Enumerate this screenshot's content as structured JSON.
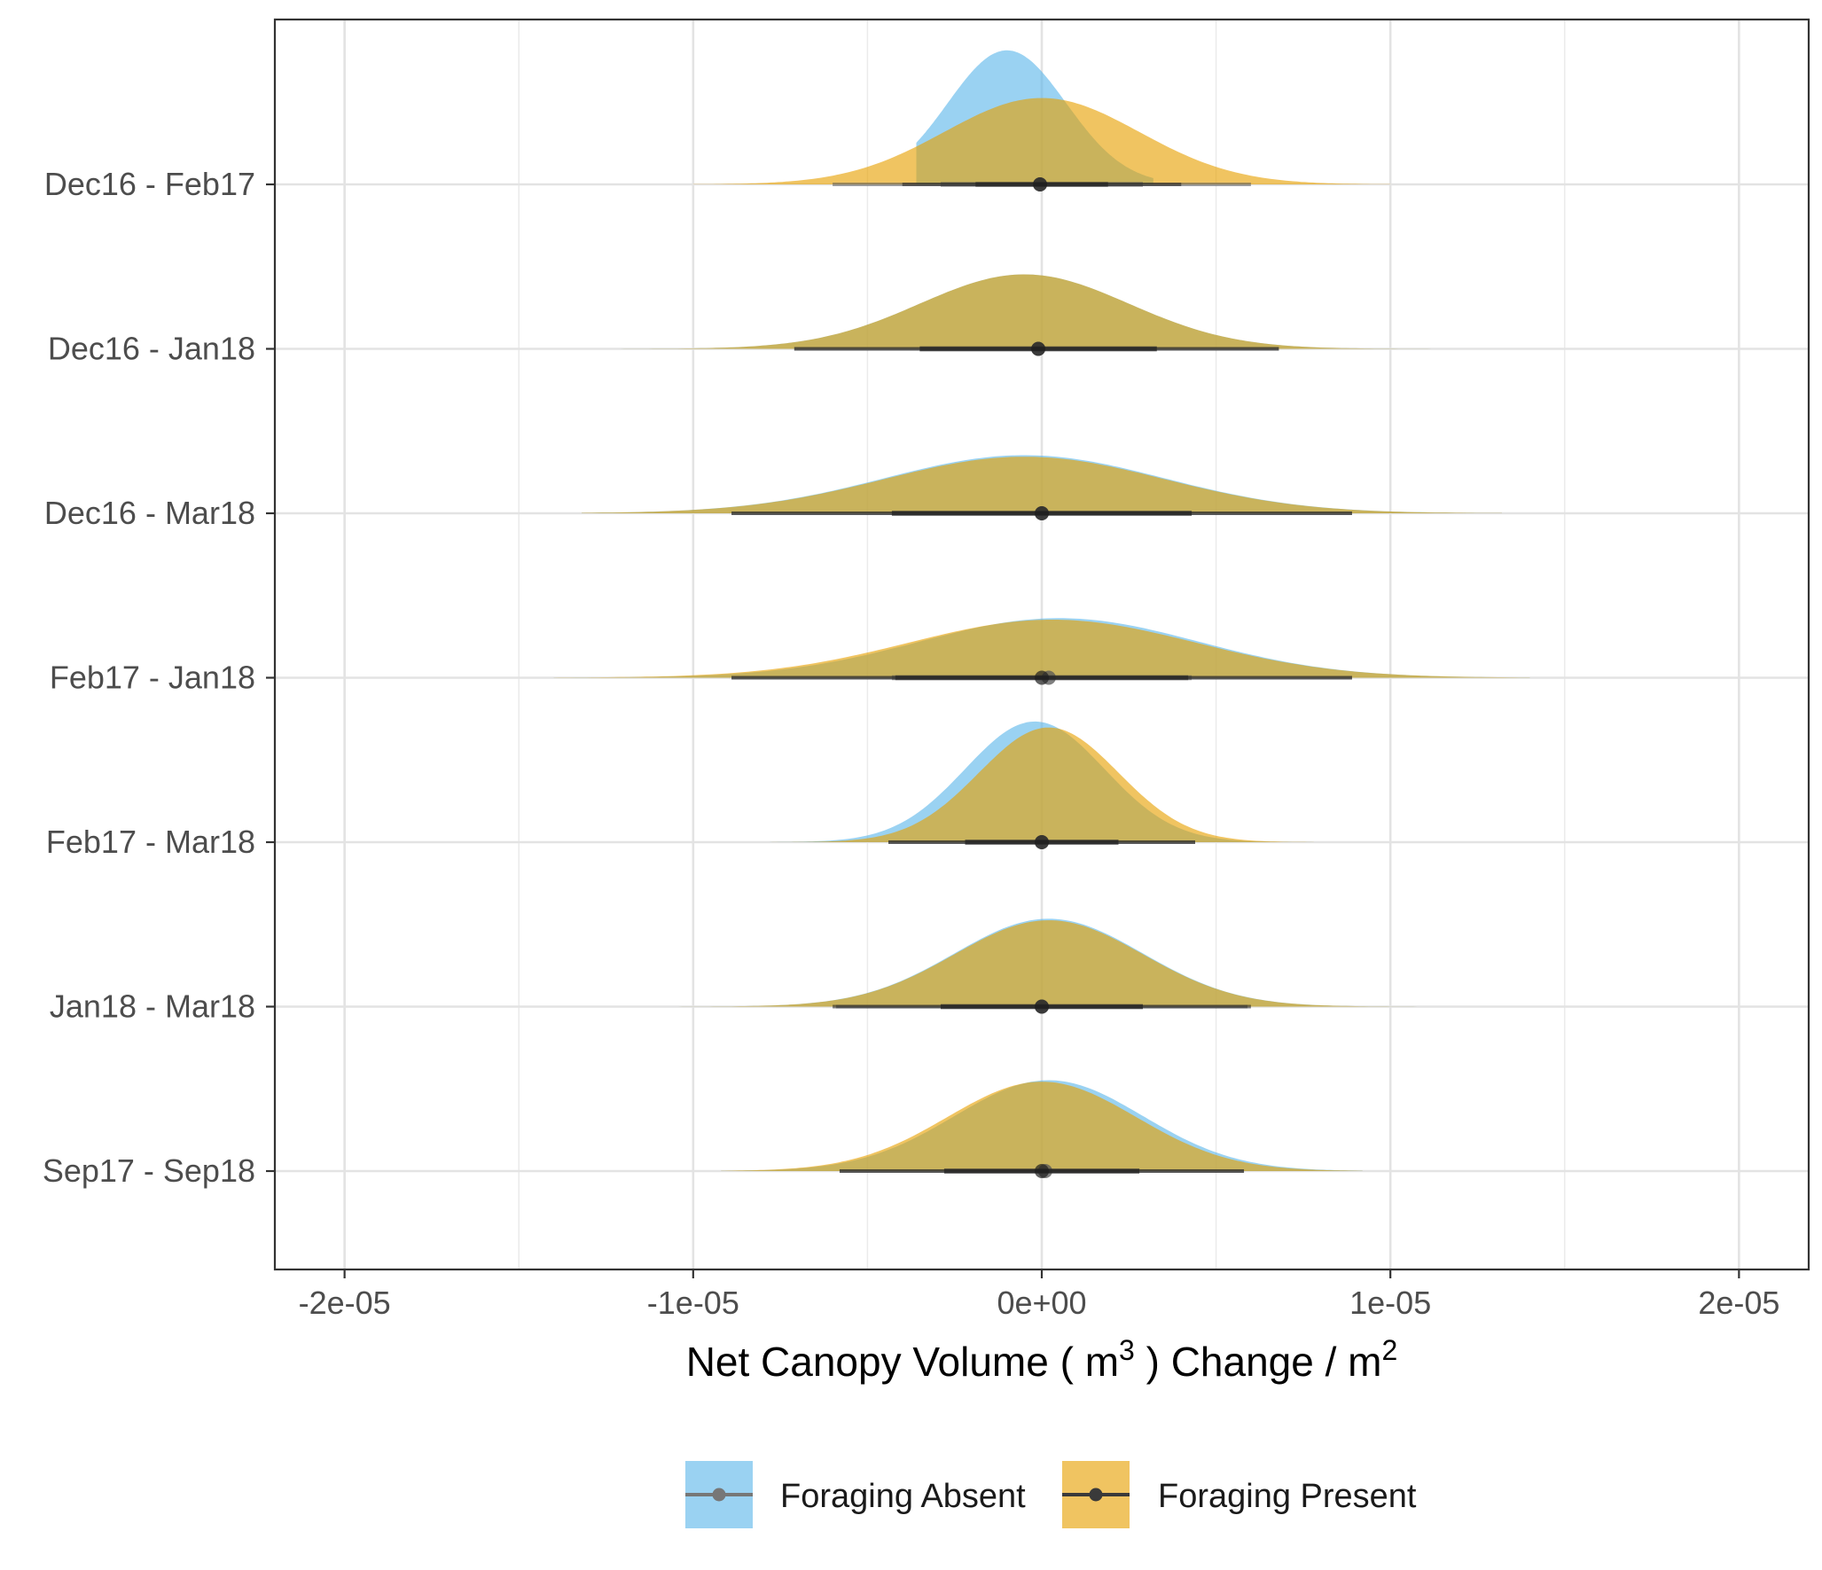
{
  "chart_data": {
    "type": "ridgeline",
    "xlabel": {
      "prefix": "Net Canopy Volume ( m",
      "sup1": "3",
      "middle": " ) Change /  m",
      "sup2": "2"
    },
    "xlim": [
      -2.2e-05,
      2.2e-05
    ],
    "x_ticks": [
      {
        "value": -2e-05,
        "label": "-2e-05"
      },
      {
        "value": -1e-05,
        "label": "-1e-05"
      },
      {
        "value": 0,
        "label": "0e+00"
      },
      {
        "value": 1e-05,
        "label": "1e-05"
      },
      {
        "value": 2e-05,
        "label": "2e-05"
      }
    ],
    "x_minor_ticks": [
      -1.5e-05,
      -5e-06,
      5e-06,
      1.5e-05
    ],
    "categories": [
      "Dec16 - Feb17",
      "Dec16 - Jan18",
      "Dec16 - Mar18",
      "Feb17 - Jan18",
      "Feb17 - Mar18",
      "Jan18 - Mar18",
      "Sep17 - Sep18"
    ],
    "grid": true,
    "legend_position": "bottom",
    "series": [
      {
        "name": "Foraging Absent",
        "color": "#56B4E9",
        "distributions": [
          {
            "category": "Dec16 - Feb17",
            "center": -1e-06,
            "sd": 1.7e-06,
            "height": 0.9,
            "range": [
              -3.6e-06,
              3.2e-06
            ],
            "point": -5e-08,
            "interval_66": [
              -2.9e-06,
              2.9e-06
            ],
            "interval_95": [
              -6e-06,
              6e-06
            ]
          },
          {
            "category": "Dec16 - Jan18",
            "center": -5e-07,
            "sd": 3e-06,
            "height": 0.5,
            "range": [
              -1.25e-05,
              1.2e-05
            ],
            "point": -1e-07,
            "interval_66": [
              -3.5e-06,
              3.3e-06
            ],
            "interval_95": [
              -7.1e-06,
              6.8e-06
            ]
          },
          {
            "category": "Dec16 - Mar18",
            "center": -5e-07,
            "sd": 4e-06,
            "height": 0.39,
            "range": [
              -1.32e-05,
              1.32e-05
            ],
            "point": 0,
            "interval_66": [
              -4.3e-06,
              4.3e-06
            ],
            "interval_95": [
              -8.9e-06,
              8.9e-06
            ]
          },
          {
            "category": "Feb17 - Jan18",
            "center": 5e-07,
            "sd": 4e-06,
            "height": 0.4,
            "range": [
              -1.4e-05,
              1.4e-05
            ],
            "point": 2e-07,
            "interval_66": [
              -4.3e-06,
              4.3e-06
            ],
            "interval_95": [
              -8.9e-06,
              8.9e-06
            ]
          },
          {
            "category": "Feb17 - Mar18",
            "center": -2e-07,
            "sd": 2e-06,
            "height": 0.81,
            "range": [
              -7.8e-06,
              7.8e-06
            ],
            "point": 0,
            "interval_66": [
              -2.2e-06,
              2.2e-06
            ],
            "interval_95": [
              -4.4e-06,
              4.4e-06
            ]
          },
          {
            "category": "Jan18 - Mar18",
            "center": 2e-07,
            "sd": 2.7e-06,
            "height": 0.59,
            "range": [
              -1.12e-05,
              1.18e-05
            ],
            "point": 0,
            "interval_66": [
              -2.9e-06,
              2.9e-06
            ],
            "interval_95": [
              -5.9e-06,
              5.9e-06
            ]
          },
          {
            "category": "Sep17 - Sep18",
            "center": 2e-07,
            "sd": 2.7e-06,
            "height": 0.61,
            "range": [
              -9.2e-06,
              9.2e-06
            ],
            "point": 1e-07,
            "interval_66": [
              -2.8e-06,
              2.8e-06
            ],
            "interval_95": [
              -5.8e-06,
              5.8e-06
            ]
          }
        ]
      },
      {
        "name": "Foraging Present",
        "color": "#E69F00",
        "distributions": [
          {
            "category": "Dec16 - Feb17",
            "center": 0,
            "sd": 2.8e-06,
            "height": 0.58,
            "range": [
              -1e-05,
              1e-05
            ],
            "point": -5e-08,
            "interval_66": [
              -1.9e-06,
              1.9e-06
            ],
            "interval_95": [
              -4e-06,
              4e-06
            ]
          },
          {
            "category": "Dec16 - Jan18",
            "center": -5e-07,
            "sd": 3e-06,
            "height": 0.5,
            "range": [
              -1.25e-05,
              1.2e-05
            ],
            "point": -1e-07,
            "interval_66": [
              -3.5e-06,
              3.3e-06
            ],
            "interval_95": [
              -7.1e-06,
              6.8e-06
            ]
          },
          {
            "category": "Dec16 - Mar18",
            "center": -5e-07,
            "sd": 4e-06,
            "height": 0.38,
            "range": [
              -1.32e-05,
              1.32e-05
            ],
            "point": 0,
            "interval_66": [
              -4.3e-06,
              4.3e-06
            ],
            "interval_95": [
              -8.9e-06,
              8.9e-06
            ]
          },
          {
            "category": "Feb17 - Jan18",
            "center": 3e-07,
            "sd": 4.1e-06,
            "height": 0.39,
            "range": [
              -1.4e-05,
              1.4e-05
            ],
            "point": 0,
            "interval_66": [
              -4.2e-06,
              4.2e-06
            ],
            "interval_95": [
              -8.9e-06,
              8.9e-06
            ]
          },
          {
            "category": "Feb17 - Mar18",
            "center": 2e-07,
            "sd": 2e-06,
            "height": 0.77,
            "range": [
              -7.8e-06,
              7.8e-06
            ],
            "point": 0,
            "interval_66": [
              -2.2e-06,
              2.2e-06
            ],
            "interval_95": [
              -4.4e-06,
              4.4e-06
            ]
          },
          {
            "category": "Jan18 - Mar18",
            "center": 2e-07,
            "sd": 2.7e-06,
            "height": 0.58,
            "range": [
              -1.12e-05,
              1.18e-05
            ],
            "point": 0,
            "interval_66": [
              -2.9e-06,
              2.9e-06
            ],
            "interval_95": [
              -6e-06,
              6e-06
            ]
          },
          {
            "category": "Sep17 - Sep18",
            "center": 0,
            "sd": 2.7e-06,
            "height": 0.6,
            "range": [
              -9.2e-06,
              9.2e-06
            ],
            "point": 0,
            "interval_66": [
              -2.8e-06,
              2.8e-06
            ],
            "interval_95": [
              -5.8e-06,
              5.8e-06
            ]
          }
        ]
      }
    ]
  }
}
